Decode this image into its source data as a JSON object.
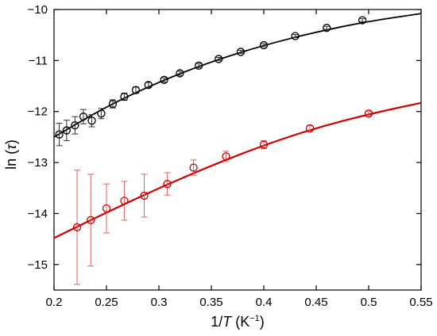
{
  "chart_data": {
    "type": "scatter",
    "title": "",
    "xlabel": {
      "prefix": "1/",
      "var": "T",
      "unit_open": " (K",
      "unit_exp": "−1",
      "unit_close": ")"
    },
    "ylabel": {
      "prefix": "ln (",
      "var": "τ",
      "suffix": ")"
    },
    "xlim": [
      0.2,
      0.55
    ],
    "ylim": [
      -15.5,
      -10
    ],
    "xticks": [
      0.2,
      0.25,
      0.3,
      0.35,
      0.4,
      0.45,
      0.5,
      0.55
    ],
    "xtick_labels": [
      "0.2",
      "0.25",
      "0.3",
      "0.35",
      "0.4",
      "0.45",
      "0.5",
      "0.55"
    ],
    "yticks": [
      -10,
      -11,
      -12,
      -13,
      -14,
      -15
    ],
    "ytick_labels": [
      "−10",
      "−11",
      "−12",
      "−13",
      "−14",
      "−15"
    ],
    "grid": false,
    "legend": "none",
    "series": [
      {
        "color": "#000000",
        "x": [
          0.205,
          0.212,
          0.22,
          0.228,
          0.236,
          0.245,
          0.256,
          0.267,
          0.278,
          0.29,
          0.305,
          0.32,
          0.338,
          0.357,
          0.378,
          0.4,
          0.43,
          0.46,
          0.494
        ],
        "y": [
          -12.45,
          -12.37,
          -12.27,
          -12.1,
          -12.18,
          -12.04,
          -11.85,
          -11.71,
          -11.58,
          -11.48,
          -11.38,
          -11.25,
          -11.1,
          -10.97,
          -10.83,
          -10.7,
          -10.52,
          -10.36,
          -10.21
        ],
        "err": [
          0.22,
          0.2,
          0.17,
          0.14,
          0.12,
          0.1,
          0.08,
          0.07,
          0.06,
          0.05,
          0.04,
          0.04,
          0.04,
          0.03,
          0.03,
          0.03,
          0.03,
          0.03,
          0.03
        ],
        "fit": {
          "x": [
            0.2,
            0.25,
            0.3,
            0.35,
            0.4,
            0.45,
            0.5,
            0.55
          ],
          "y": [
            -12.5,
            -11.9,
            -11.42,
            -11.02,
            -10.7,
            -10.44,
            -10.23,
            -10.08
          ]
        }
      },
      {
        "color": "#cc0000",
        "x": [
          0.222,
          0.235,
          0.25,
          0.267,
          0.286,
          0.308,
          0.333,
          0.364,
          0.4,
          0.444,
          0.5
        ],
        "y": [
          -14.27,
          -14.13,
          -13.9,
          -13.75,
          -13.65,
          -13.42,
          -13.1,
          -12.88,
          -12.65,
          -12.33,
          -12.04
        ],
        "err": [
          1.12,
          0.9,
          0.48,
          0.38,
          0.42,
          0.22,
          0.15,
          0.1,
          0.08,
          0.05,
          0.04
        ],
        "fit": {
          "x": [
            0.2,
            0.25,
            0.3,
            0.35,
            0.4,
            0.45,
            0.5,
            0.55
          ],
          "y": [
            -14.48,
            -13.98,
            -13.5,
            -13.06,
            -12.66,
            -12.32,
            -12.05,
            -11.83
          ]
        }
      }
    ]
  }
}
